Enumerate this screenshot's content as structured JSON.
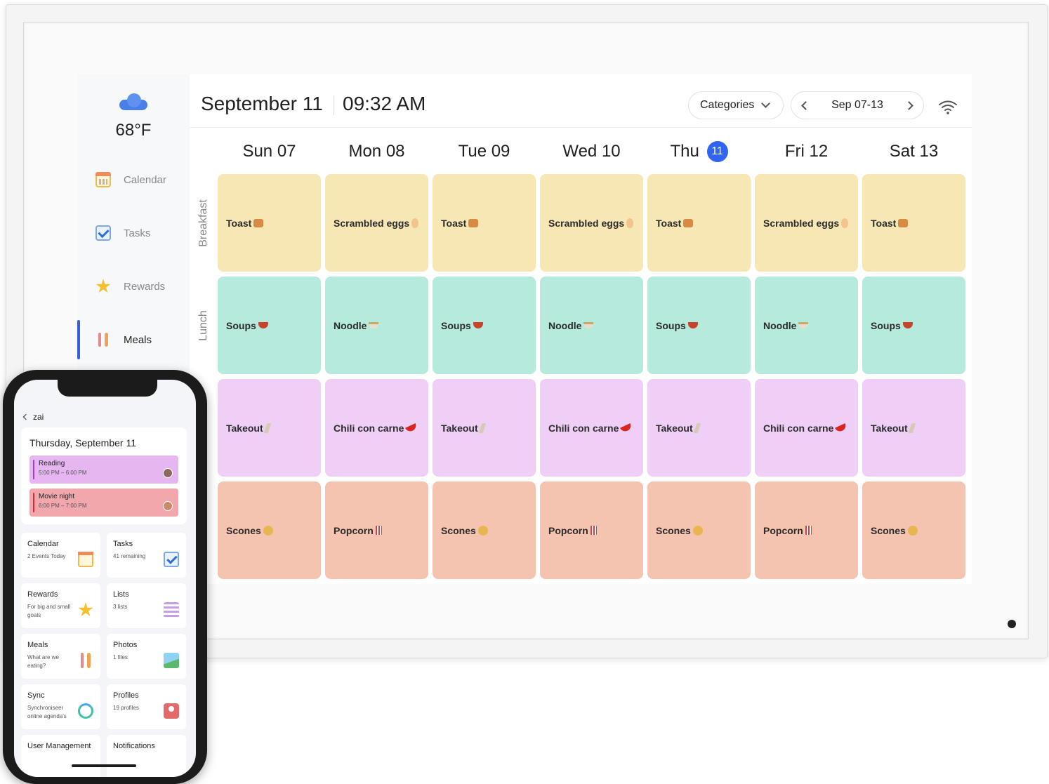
{
  "display": {
    "header": {
      "date": "September 11",
      "time": "09:32 AM",
      "categories_label": "Categories",
      "week_range": "Sep 07-13",
      "wifi_icon": "wifi-icon"
    },
    "sidebar": {
      "weather": {
        "icon": "cloud-icon",
        "temperature": "68°F"
      },
      "items": [
        {
          "label": "Calendar",
          "icon": "calendar-icon",
          "active": false
        },
        {
          "label": "Tasks",
          "icon": "checkbox-icon",
          "active": false
        },
        {
          "label": "Rewards",
          "icon": "star-icon",
          "active": false
        },
        {
          "label": "Meals",
          "icon": "utensils-icon",
          "active": true
        }
      ]
    },
    "days": [
      {
        "label": "Sun 07"
      },
      {
        "label": "Mon 08"
      },
      {
        "label": "Tue 09"
      },
      {
        "label": "Wed 10"
      },
      {
        "label": "Thu",
        "badge": "11",
        "today": true
      },
      {
        "label": "Fri 12"
      },
      {
        "label": "Sat 13"
      }
    ],
    "meal_rows": [
      {
        "label": "Breakfast",
        "color": "#f7e7b4",
        "cells": [
          "Toast",
          "Scrambled eggs",
          "Toast",
          "Scrambled eggs",
          "Toast",
          "Scrambled eggs",
          "Toast"
        ],
        "icons": [
          "bread-icon",
          "egg-icon",
          "bread-icon",
          "egg-icon",
          "bread-icon",
          "egg-icon",
          "bread-icon"
        ]
      },
      {
        "label": "Lunch",
        "color": "#b6eadc",
        "cells": [
          "Soups",
          "Noodle",
          "Soups",
          "Noodle",
          "Soups",
          "Noodle",
          "Soups"
        ],
        "icons": [
          "soup-pot-icon",
          "noodle-bowl-icon",
          "soup-pot-icon",
          "noodle-bowl-icon",
          "soup-pot-icon",
          "noodle-bowl-icon",
          "soup-pot-icon"
        ]
      },
      {
        "label": "",
        "color": "#f0cff7",
        "cells": [
          "Takeout",
          "Chili con carne",
          "Takeout",
          "Chili con carne",
          "Takeout",
          "Chili con carne",
          "Takeout"
        ],
        "icons": [
          "chopsticks-icon",
          "chili-icon",
          "chopsticks-icon",
          "chili-icon",
          "chopsticks-icon",
          "chili-icon",
          "chopsticks-icon"
        ]
      },
      {
        "label": "",
        "color": "#f4c4b1",
        "cells": [
          "Scones",
          "Popcorn",
          "Scones",
          "Popcorn",
          "Scones",
          "Popcorn",
          "Scones"
        ],
        "icons": [
          "cookie-icon",
          "popcorn-icon",
          "cookie-icon",
          "popcorn-icon",
          "cookie-icon",
          "popcorn-icon",
          "cookie-icon"
        ]
      }
    ],
    "accent": "#2f64f5"
  },
  "phone": {
    "back_label": "zai",
    "date_heading": "Thursday, September 11",
    "events": [
      {
        "title": "Reading",
        "time": "5:00 PM – 6:00 PM",
        "color": "#e6b6f0"
      },
      {
        "title": "Movie night",
        "time": "6:00 PM – 7:00 PM",
        "color": "#f2a7ad"
      }
    ],
    "tiles": [
      {
        "title": "Calendar",
        "subtitle": "2 Events Today",
        "icon": "calendar-icon"
      },
      {
        "title": "Tasks",
        "subtitle": "41 remaining",
        "icon": "checkbox-icon"
      },
      {
        "title": "Rewards",
        "subtitle": "For big and small goals",
        "icon": "star-icon"
      },
      {
        "title": "Lists",
        "subtitle": "3 lists",
        "icon": "list-icon"
      },
      {
        "title": "Meals",
        "subtitle": "What are we eating?",
        "icon": "utensils-icon"
      },
      {
        "title": "Photos",
        "subtitle": "1 files",
        "icon": "photo-icon"
      },
      {
        "title": "Sync",
        "subtitle": "Synchroniseer online agenda's",
        "icon": "sync-icon"
      },
      {
        "title": "Profiles",
        "subtitle": "19 profiles",
        "icon": "profile-icon"
      },
      {
        "title": "User Management",
        "subtitle": "",
        "icon": ""
      },
      {
        "title": "Notifications",
        "subtitle": "",
        "icon": ""
      }
    ]
  }
}
